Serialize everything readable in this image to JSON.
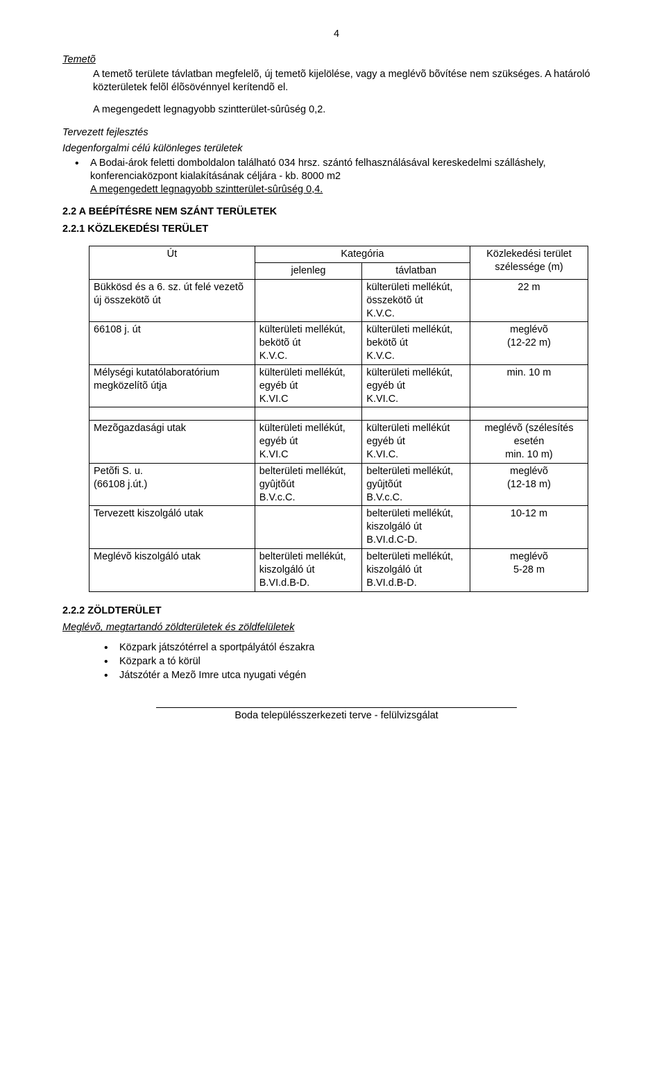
{
  "page_number": "4",
  "temeto": {
    "title": "Temetõ",
    "p1": "A temetõ területe távlatban megfelelõ, új temetõ kijelölése, vagy a meglévõ bõvítése nem szükséges. A határoló közterületek felõl élõsövénnyel kerítendõ el.",
    "p2": "A megengedett legnagyobb szintterület-sûrûség 0,2."
  },
  "tervezett": {
    "heading": "Tervezett fejlesztés",
    "sub": "Idegenforgalmi célú különleges területek",
    "bullet": "A Bodai-árok feletti domboldalon található 034 hrsz. szántó felhasználásával kereskedelmi szálláshely, konferenciaközpont kialakításának céljára - kb. 8000 m2",
    "underline": "A megengedett legnagyobb szintterület-sûrûség 0,4."
  },
  "h22": "2.2  A BEÉPÍTÉSRE NEM SZÁNT TERÜLETEK",
  "h221": "2.2.1  KÖZLEKEDÉSI TERÜLET",
  "table": {
    "head_ut": "Út",
    "head_kat": "Kategória",
    "head_jelenleg": "jelenleg",
    "head_tavlatban": "távlatban",
    "head_kozl": "Közlekedési terület szélessége (m)",
    "rows": [
      {
        "c0": "Bükkösd és a 6. sz. út felé vezetõ új összekötõ út",
        "c1": "",
        "c2": "külterületi mellékút, összekötõ út\nK.V.C.",
        "c3": "22 m"
      },
      {
        "c0": "66108 j. út",
        "c1": "külterületi mellékút, bekötõ út\nK.V.C.",
        "c2": "külterületi mellékút, bekötõ út\nK.V.C.",
        "c3": "meglévõ\n(12-22 m)"
      },
      {
        "c0": "Mélységi kutatólaboratórium megközelítõ útja",
        "c1": "külterületi mellékút, egyéb út\nK.VI.C",
        "c2": "külterületi mellékút, egyéb út\nK.VI.C.",
        "c3": "min. 10 m"
      },
      {
        "c0": "Mezõgazdasági utak",
        "c1": "külterületi mellékút, egyéb út\nK.VI.C",
        "c2": "külterületi mellékút egyéb út\nK.VI.C.",
        "c3": "meglévõ (szélesítés esetén\nmin. 10 m)"
      },
      {
        "c0": "Petõfi S. u.\n(66108 j.út.)",
        "c1": "belterületi mellékút, gyûjtõút\nB.V.c.C.",
        "c2": "belterületi mellékút, gyûjtõút\nB.V.c.C.",
        "c3": "meglévõ\n(12-18 m)"
      },
      {
        "c0": "Tervezett kiszolgáló utak",
        "c1": "",
        "c2": "belterületi mellékút, kiszolgáló út\nB.VI.d.C-D.",
        "c3": "10-12 m"
      },
      {
        "c0": "Meglévõ kiszolgáló utak",
        "c1": "belterületi mellékút, kiszolgáló út\nB.VI.d.B-D.",
        "c2": "belterületi mellékút, kiszolgáló út\nB.VI.d.B-D.",
        "c3": "meglévõ\n5-28 m"
      }
    ]
  },
  "h222": "2.2.2  ZÖLDTERÜLET",
  "zold": {
    "sub": "Meglévõ, megtartandó zöldterületek és zöldfelületek",
    "items": [
      "Közpark játszótérrel a sportpályától északra",
      "Közpark a tó körül",
      "Játszótér a Mezõ Imre utca nyugati végén"
    ]
  },
  "footer": "Boda településszerkezeti terve - felülvizsgálat"
}
